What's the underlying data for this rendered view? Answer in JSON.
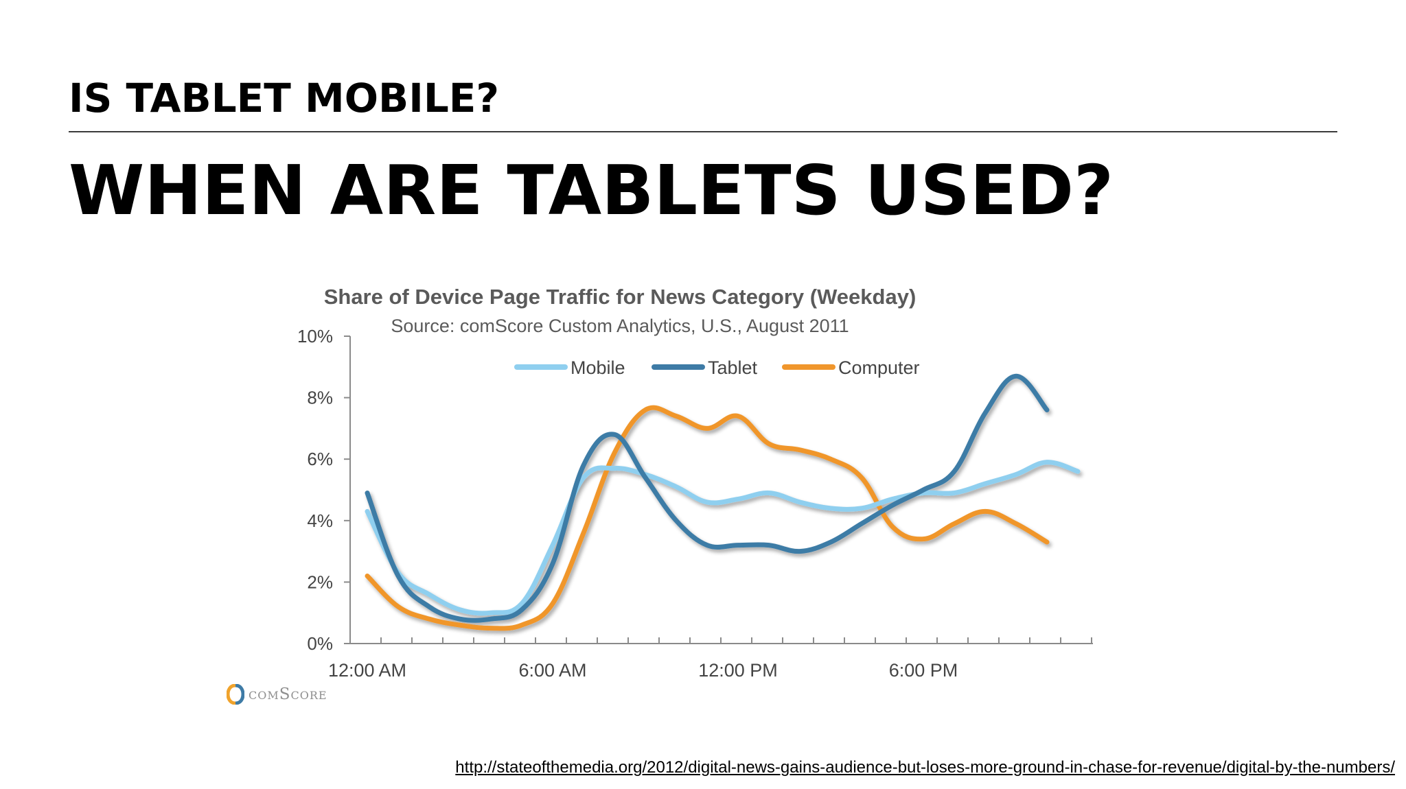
{
  "slide": {
    "kicker": "IS TABLET MOBILE?",
    "headline": "WHEN ARE TABLETS USED?",
    "source_url": "http://stateofthemedia.org/2012/digital-news-gains-audience-but-loses-more-ground-in-chase-for-revenue/digital-by-the-numbers/",
    "logo_text": "comScore",
    "logo_icon": "comscore-logo-icon"
  },
  "chart_data": {
    "type": "line",
    "title": "Share of Device Page Traffic for News Category (Weekday)",
    "subtitle": "Source: comScore Custom Analytics, U.S., August 2011",
    "xlabel": "",
    "ylabel": "",
    "x": [
      0,
      1,
      2,
      3,
      4,
      5,
      6,
      7,
      8,
      9,
      10,
      11,
      12,
      13,
      14,
      15,
      16,
      17,
      18,
      19,
      20,
      21,
      22,
      23
    ],
    "x_tick_labels": [
      {
        "x": 0,
        "label": "12:00 AM"
      },
      {
        "x": 6,
        "label": "6:00 AM"
      },
      {
        "x": 12,
        "label": "12:00 PM"
      },
      {
        "x": 18,
        "label": "6:00 PM"
      }
    ],
    "ylim": [
      0,
      10
    ],
    "y_ticks": [
      0,
      2,
      4,
      6,
      8,
      10
    ],
    "y_tick_labels": [
      "0%",
      "2%",
      "4%",
      "6%",
      "8%",
      "10%"
    ],
    "grid": false,
    "legend": "top-center",
    "series": [
      {
        "name": "Mobile",
        "color": "#8fcfef",
        "values": [
          4.3,
          2.3,
          1.6,
          1.1,
          1.0,
          1.3,
          3.2,
          5.4,
          5.7,
          5.5,
          5.1,
          4.6,
          4.7,
          4.9,
          4.6,
          4.4,
          4.4,
          4.7,
          4.9,
          4.9,
          5.2,
          5.5,
          5.9,
          5.6
        ]
      },
      {
        "name": "Tablet",
        "color": "#3e7ba6",
        "values": [
          4.9,
          2.2,
          1.2,
          0.8,
          0.8,
          1.1,
          2.6,
          5.8,
          6.8,
          5.4,
          4.0,
          3.2,
          3.2,
          3.2,
          3.0,
          3.3,
          3.9,
          4.5,
          5.0,
          5.6,
          7.5,
          8.7,
          7.6,
          null
        ]
      },
      {
        "name": "Computer",
        "color": "#f0962c",
        "values": [
          2.2,
          1.2,
          0.8,
          0.6,
          0.5,
          0.6,
          1.3,
          3.6,
          6.2,
          7.6,
          7.4,
          7.0,
          7.4,
          6.5,
          6.3,
          6.0,
          5.4,
          3.8,
          3.4,
          3.9,
          4.3,
          3.9,
          3.3,
          null
        ]
      }
    ]
  }
}
